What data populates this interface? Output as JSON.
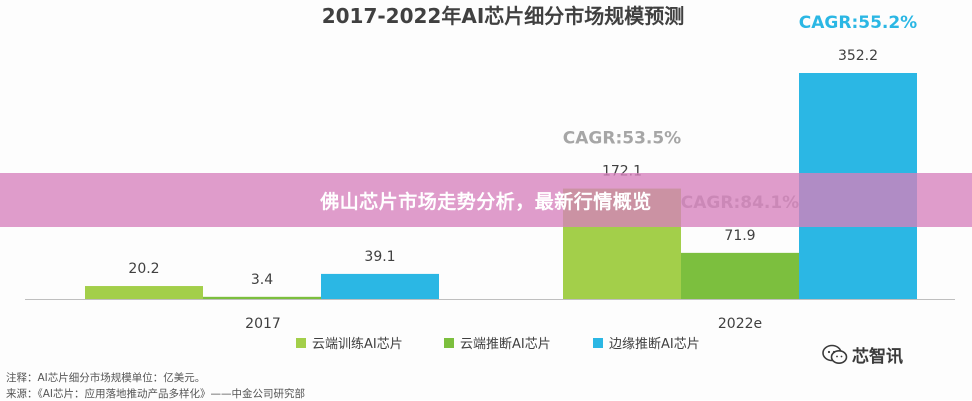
{
  "chart_data": {
    "type": "bar",
    "title": "2017-2022年AI芯片细分市场规模预测",
    "categories": [
      "2017",
      "2022e"
    ],
    "series": [
      {
        "name": "云端训练AI芯片",
        "values": [
          20.2,
          172.1
        ],
        "color": "#a3cf4a"
      },
      {
        "name": "云端推断AI芯片",
        "values": [
          3.4,
          71.9
        ],
        "color": "#7cbf3e"
      },
      {
        "name": "边缘推断AI芯片",
        "values": [
          39.1,
          352.2
        ],
        "color": "#2bb7e4"
      }
    ],
    "cagr": [
      {
        "text": "CAGR:53.5%",
        "series": 0,
        "color": "#a6a6a6"
      },
      {
        "text": "CAGR:84.1%",
        "series": 1,
        "color": "#a6a6a6"
      },
      {
        "text": "CAGR:55.2%",
        "series": 2,
        "color": "#2bb7e4"
      }
    ],
    "ylim": [
      0,
      370
    ],
    "grid": false,
    "legend": "bottom"
  },
  "banner": {
    "text": "佛山芯片市场走势分析，最新行情概览"
  },
  "notes": {
    "line1": "注释：AI芯片细分市场规模单位：亿美元。",
    "line2": "来源：《AI芯片：应用落地推动产品多样化》——中金公司研究部"
  },
  "watermark": {
    "icon": "wechat-icon",
    "text": "芯智讯"
  }
}
